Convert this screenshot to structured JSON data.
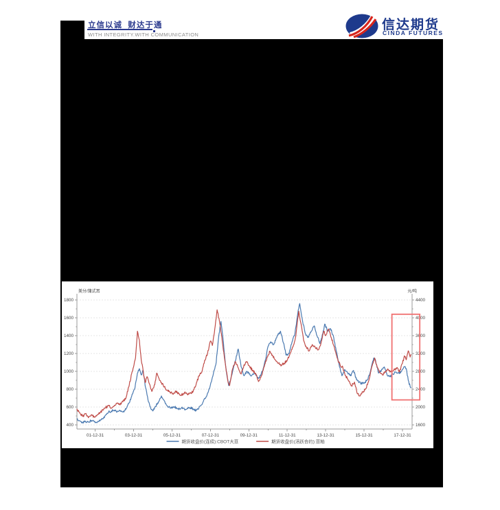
{
  "header": {
    "slogan_cn": "立信以诚  财达于通",
    "slogan_en": "WITH INTEGRITY.WITH COMMUNICATION",
    "logo_cn": "信达期货",
    "logo_en": "CINDA FUTURES"
  },
  "colors": {
    "brand_navy": "#1e3a8c",
    "series_blue": "#4a79b0",
    "series_red": "#bf4b47",
    "annotation_red": "#f07070",
    "grid": "#e4e4e4",
    "axis": "#999999",
    "tick_text": "#444444"
  },
  "chart_data": {
    "type": "line",
    "title": "",
    "grid": "horizontal-dashed",
    "legend_position": "bottom",
    "left_axis": {
      "unit": "美分/蒲式耳",
      "min": 400,
      "max": 1800,
      "ticks": [
        1800,
        1600,
        1400,
        1200,
        1000,
        800,
        600,
        400
      ]
    },
    "right_axis": {
      "unit": "元/吨",
      "min": 1600,
      "max": 4400,
      "ticks": [
        4400,
        4000,
        3600,
        3200,
        2800,
        2400,
        2000,
        1600
      ]
    },
    "x_range": [
      2001.05,
      2018.5
    ],
    "x_tick_years": [
      2002,
      2004,
      2006,
      2008,
      2010,
      2012,
      2014,
      2016,
      2018
    ],
    "x_tick_labels": [
      "01-12-31",
      "03-12-31",
      "05-12-31",
      "07-12-31",
      "09-12-31",
      "11-12-31",
      "13-12-31",
      "15-12-31",
      "17-12-31"
    ],
    "annotation": {
      "shape": "rect",
      "x_from": 2017.45,
      "x_to": 2018.9,
      "axis": "left",
      "value_from": 680,
      "value_to": 1640,
      "color": "#f07070"
    },
    "series": [
      {
        "name": "期货收盘价(连续):CBOT大豆",
        "color": "#4a79b0",
        "axis": "left",
        "points": [
          [
            2001.05,
            465
          ],
          [
            2001.2,
            445
          ],
          [
            2001.35,
            425
          ],
          [
            2001.5,
            440
          ],
          [
            2001.65,
            430
          ],
          [
            2001.8,
            450
          ],
          [
            2001.95,
            435
          ],
          [
            2002.1,
            425
          ],
          [
            2002.25,
            445
          ],
          [
            2002.4,
            470
          ],
          [
            2002.55,
            510
          ],
          [
            2002.7,
            545
          ],
          [
            2002.85,
            555
          ],
          [
            2003,
            565
          ],
          [
            2003.15,
            550
          ],
          [
            2003.3,
            560
          ],
          [
            2003.45,
            545
          ],
          [
            2003.6,
            575
          ],
          [
            2003.75,
            640
          ],
          [
            2003.9,
            720
          ],
          [
            2004.05,
            800
          ],
          [
            2004.2,
            980
          ],
          [
            2004.3,
            1030
          ],
          [
            2004.4,
            960
          ],
          [
            2004.5,
            1010
          ],
          [
            2004.6,
            840
          ],
          [
            2004.75,
            680
          ],
          [
            2004.9,
            580
          ],
          [
            2005,
            555
          ],
          [
            2005.15,
            610
          ],
          [
            2005.3,
            660
          ],
          [
            2005.45,
            725
          ],
          [
            2005.6,
            670
          ],
          [
            2005.75,
            615
          ],
          [
            2005.9,
            590
          ],
          [
            2006.1,
            605
          ],
          [
            2006.3,
            580
          ],
          [
            2006.5,
            590
          ],
          [
            2006.7,
            575
          ],
          [
            2006.9,
            595
          ],
          [
            2007.1,
            580
          ],
          [
            2007.25,
            560
          ],
          [
            2007.4,
            590
          ],
          [
            2007.6,
            650
          ],
          [
            2007.8,
            720
          ],
          [
            2008,
            850
          ],
          [
            2008.15,
            970
          ],
          [
            2008.3,
            1100
          ],
          [
            2008.45,
            1420
          ],
          [
            2008.55,
            1560
          ],
          [
            2008.65,
            1380
          ],
          [
            2008.8,
            1050
          ],
          [
            2008.95,
            840
          ],
          [
            2009.1,
            950
          ],
          [
            2009.25,
            1080
          ],
          [
            2009.45,
            1250
          ],
          [
            2009.6,
            1050
          ],
          [
            2009.75,
            950
          ],
          [
            2009.9,
            1000
          ],
          [
            2010.1,
            950
          ],
          [
            2010.3,
            980
          ],
          [
            2010.5,
            920
          ],
          [
            2010.7,
            1000
          ],
          [
            2010.85,
            1120
          ],
          [
            2011,
            1280
          ],
          [
            2011.15,
            1330
          ],
          [
            2011.3,
            1300
          ],
          [
            2011.5,
            1400
          ],
          [
            2011.65,
            1450
          ],
          [
            2011.8,
            1320
          ],
          [
            2011.95,
            1180
          ],
          [
            2012.1,
            1200
          ],
          [
            2012.25,
            1330
          ],
          [
            2012.4,
            1420
          ],
          [
            2012.55,
            1650
          ],
          [
            2012.65,
            1760
          ],
          [
            2012.8,
            1560
          ],
          [
            2012.95,
            1420
          ],
          [
            2013.1,
            1380
          ],
          [
            2013.25,
            1450
          ],
          [
            2013.4,
            1510
          ],
          [
            2013.55,
            1400
          ],
          [
            2013.7,
            1310
          ],
          [
            2013.85,
            1420
          ],
          [
            2013.95,
            1530
          ],
          [
            2014.1,
            1450
          ],
          [
            2014.25,
            1480
          ],
          [
            2014.4,
            1400
          ],
          [
            2014.55,
            1230
          ],
          [
            2014.7,
            1080
          ],
          [
            2014.85,
            950
          ],
          [
            2015,
            1020
          ],
          [
            2015.15,
            980
          ],
          [
            2015.3,
            950
          ],
          [
            2015.45,
            1010
          ],
          [
            2015.6,
            910
          ],
          [
            2015.75,
            880
          ],
          [
            2015.9,
            860
          ],
          [
            2016.05,
            880
          ],
          [
            2016.2,
            910
          ],
          [
            2016.35,
            1020
          ],
          [
            2016.5,
            1150
          ],
          [
            2016.6,
            1120
          ],
          [
            2016.75,
            980
          ],
          [
            2016.9,
            1010
          ],
          [
            2017.05,
            1050
          ],
          [
            2017.2,
            960
          ],
          [
            2017.35,
            940
          ],
          [
            2017.5,
            970
          ],
          [
            2017.65,
            990
          ],
          [
            2017.8,
            980
          ],
          [
            2017.95,
            1000
          ],
          [
            2018.1,
            1050
          ],
          [
            2018.2,
            1030
          ],
          [
            2018.3,
            900
          ],
          [
            2018.4,
            830
          ],
          [
            2018.45,
            820
          ]
        ]
      },
      {
        "name": "期货收盘价(活跃合约):豆粕",
        "color": "#bf4b47",
        "axis": "right",
        "points": [
          [
            2001.05,
            1960
          ],
          [
            2001.2,
            1870
          ],
          [
            2001.35,
            1790
          ],
          [
            2001.5,
            1850
          ],
          [
            2001.65,
            1760
          ],
          [
            2001.8,
            1830
          ],
          [
            2001.95,
            1780
          ],
          [
            2002.1,
            1820
          ],
          [
            2002.25,
            1880
          ],
          [
            2002.4,
            1930
          ],
          [
            2002.55,
            1990
          ],
          [
            2002.7,
            2030
          ],
          [
            2002.85,
            1980
          ],
          [
            2003,
            2040
          ],
          [
            2003.15,
            2080
          ],
          [
            2003.3,
            2050
          ],
          [
            2003.45,
            2120
          ],
          [
            2003.6,
            2200
          ],
          [
            2003.75,
            2450
          ],
          [
            2003.9,
            2750
          ],
          [
            2004,
            2900
          ],
          [
            2004.1,
            3100
          ],
          [
            2004.2,
            3700
          ],
          [
            2004.3,
            3500
          ],
          [
            2004.4,
            3050
          ],
          [
            2004.5,
            2800
          ],
          [
            2004.6,
            2550
          ],
          [
            2004.7,
            2680
          ],
          [
            2004.8,
            2540
          ],
          [
            2004.95,
            2350
          ],
          [
            2005.1,
            2500
          ],
          [
            2005.2,
            2760
          ],
          [
            2005.3,
            2660
          ],
          [
            2005.45,
            2550
          ],
          [
            2005.6,
            2450
          ],
          [
            2005.75,
            2380
          ],
          [
            2005.9,
            2330
          ],
          [
            2006.05,
            2300
          ],
          [
            2006.2,
            2360
          ],
          [
            2006.35,
            2300
          ],
          [
            2006.5,
            2270
          ],
          [
            2006.65,
            2320
          ],
          [
            2006.8,
            2280
          ],
          [
            2006.95,
            2310
          ],
          [
            2007.1,
            2350
          ],
          [
            2007.25,
            2500
          ],
          [
            2007.4,
            2700
          ],
          [
            2007.55,
            2780
          ],
          [
            2007.7,
            3050
          ],
          [
            2007.85,
            3200
          ],
          [
            2008,
            3480
          ],
          [
            2008.1,
            3380
          ],
          [
            2008.2,
            3650
          ],
          [
            2008.35,
            4180
          ],
          [
            2008.5,
            3850
          ],
          [
            2008.6,
            3550
          ],
          [
            2008.75,
            3050
          ],
          [
            2008.9,
            2600
          ],
          [
            2009,
            2480
          ],
          [
            2009.15,
            2850
          ],
          [
            2009.3,
            3020
          ],
          [
            2009.45,
            2880
          ],
          [
            2009.6,
            2740
          ],
          [
            2009.75,
            2950
          ],
          [
            2009.9,
            3020
          ],
          [
            2010.05,
            2900
          ],
          [
            2010.2,
            2820
          ],
          [
            2010.35,
            2760
          ],
          [
            2010.5,
            2570
          ],
          [
            2010.65,
            2700
          ],
          [
            2010.8,
            2900
          ],
          [
            2010.95,
            3120
          ],
          [
            2011.1,
            3250
          ],
          [
            2011.25,
            3150
          ],
          [
            2011.4,
            3050
          ],
          [
            2011.55,
            2980
          ],
          [
            2011.7,
            2940
          ],
          [
            2011.85,
            2980
          ],
          [
            2012,
            3050
          ],
          [
            2012.15,
            3200
          ],
          [
            2012.3,
            3350
          ],
          [
            2012.45,
            3600
          ],
          [
            2012.6,
            4150
          ],
          [
            2012.7,
            3900
          ],
          [
            2012.85,
            3500
          ],
          [
            2013,
            3330
          ],
          [
            2013.15,
            3260
          ],
          [
            2013.3,
            3400
          ],
          [
            2013.45,
            3340
          ],
          [
            2013.6,
            3280
          ],
          [
            2013.75,
            3420
          ],
          [
            2013.9,
            3700
          ],
          [
            2014,
            3600
          ],
          [
            2014.15,
            3750
          ],
          [
            2014.3,
            3550
          ],
          [
            2014.45,
            3350
          ],
          [
            2014.6,
            3100
          ],
          [
            2014.75,
            2950
          ],
          [
            2014.9,
            2880
          ],
          [
            2015.05,
            2700
          ],
          [
            2015.2,
            2580
          ],
          [
            2015.35,
            2480
          ],
          [
            2015.5,
            2560
          ],
          [
            2015.65,
            2300
          ],
          [
            2015.8,
            2250
          ],
          [
            2015.95,
            2350
          ],
          [
            2016.1,
            2420
          ],
          [
            2016.25,
            2600
          ],
          [
            2016.4,
            2900
          ],
          [
            2016.55,
            3100
          ],
          [
            2016.65,
            2950
          ],
          [
            2016.8,
            2780
          ],
          [
            2016.95,
            2720
          ],
          [
            2017.1,
            2780
          ],
          [
            2017.25,
            2850
          ],
          [
            2017.4,
            2790
          ],
          [
            2017.55,
            2830
          ],
          [
            2017.7,
            2880
          ],
          [
            2017.85,
            2790
          ],
          [
            2018,
            2980
          ],
          [
            2018.1,
            3150
          ],
          [
            2018.2,
            3060
          ],
          [
            2018.3,
            3260
          ],
          [
            2018.4,
            3120
          ],
          [
            2018.45,
            3180
          ]
        ]
      }
    ]
  }
}
